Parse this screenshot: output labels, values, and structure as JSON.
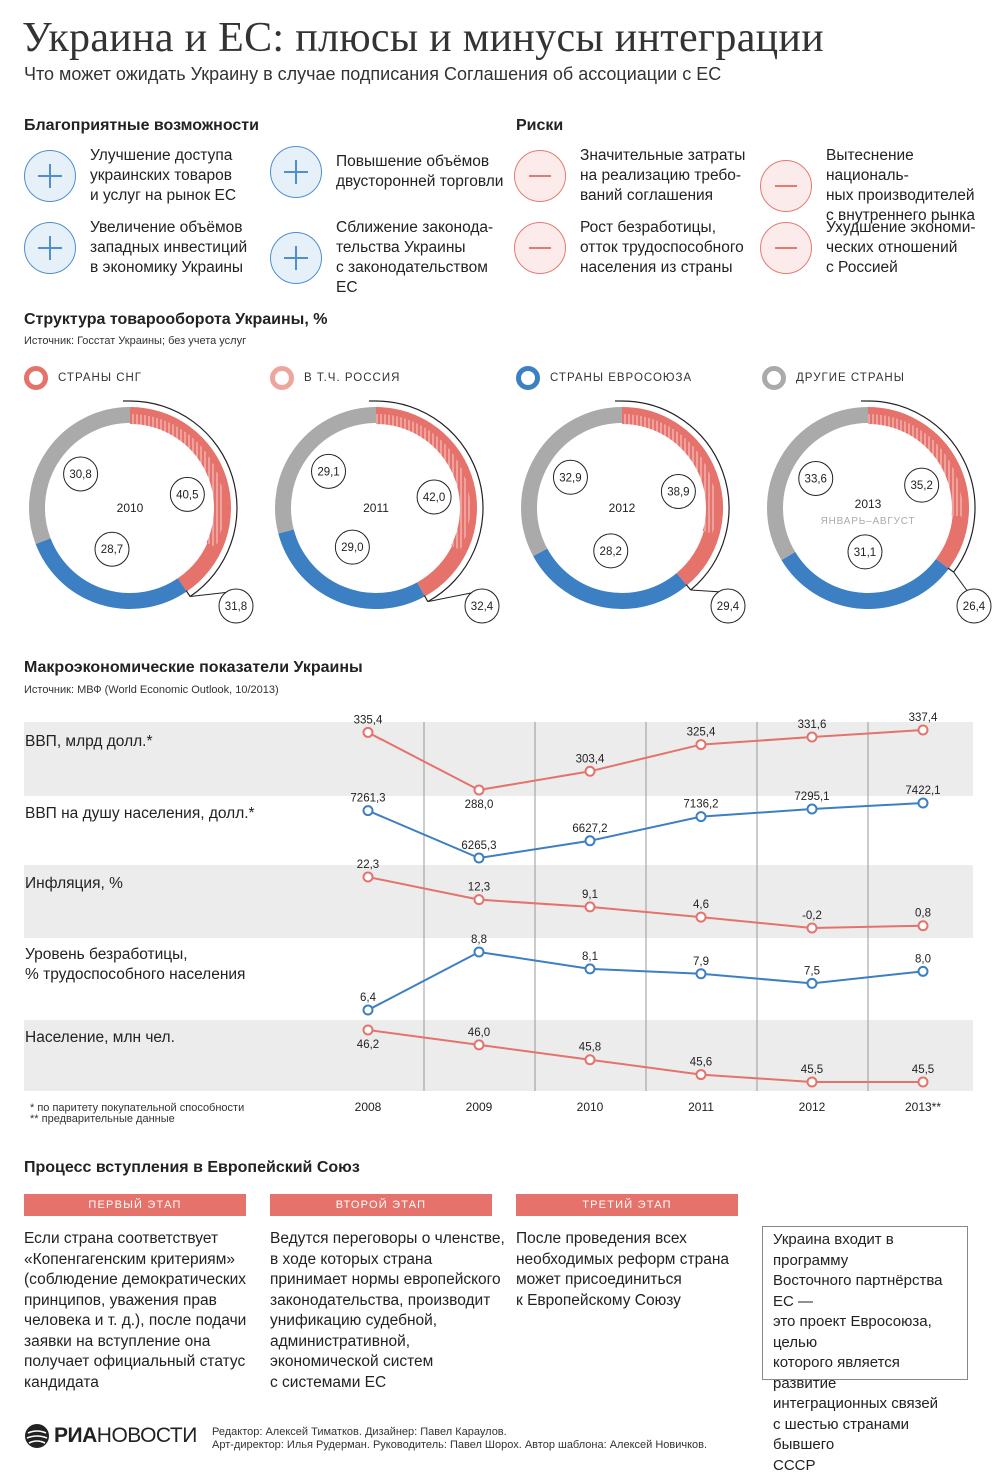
{
  "header": {
    "title": "Украина и ЕС: плюсы и минусы интеграции",
    "subtitle": "Что может ожидать Украину в случае подписания Соглашения об ассоциации с ЕС"
  },
  "opportunities": {
    "heading": "Благоприятные возможности",
    "items": [
      "Улучшение доступа\nукраинских товаров\nи услуг на рынок ЕС",
      "Повышение объёмов\nдвусторонней торговли",
      "Увеличение объёмов\nзападных инвестиций\nв экономику Украины",
      "Сближение законода-\nтельства Украины\nс законодательством ЕС"
    ]
  },
  "risks": {
    "heading": "Риски",
    "items": [
      "Значительные затраты\nна реализацию требо-\nваний соглашения",
      "Вытеснение националь-\nных производителей\nс внутреннего рынка",
      "Рост безработицы,\nотток трудоспособного\nнаселения из страны",
      "Ухудшение экономи-\nческих отношений\nс Россией"
    ]
  },
  "colors": {
    "red": "#e5726b",
    "blue": "#3c7fc3",
    "gray": "#aaaaaa",
    "hatch": "#f0a49e"
  },
  "trade": {
    "heading": "Структура товарооборота Украины, %",
    "source": "Источник: Госстат Украины; без учета услуг",
    "legend": [
      "СТРАНЫ СНГ",
      "В Т.Ч. РОССИЯ",
      "СТРАНЫ ЕВРОСОЮЗА",
      "ДРУГИЕ СТРАНЫ"
    ]
  },
  "macro": {
    "heading": "Макроэкономические показатели Украины",
    "source": "Источник: МВФ (World Economic Outlook, 10/2013)",
    "row_labels": [
      "ВВП, млрд долл.*",
      "ВВП на душу населения, долл.*",
      "Инфляция, %",
      "Уровень безработицы,\n% трудоспособного населения",
      "Население, млн чел."
    ],
    "footnote1": "* по паритету покупательной способности",
    "footnote2": "** предварительные данные"
  },
  "chart_data": [
    {
      "type": "pie",
      "title": "2010",
      "series": [
        {
          "name": "Страны СНГ",
          "value": 40.5
        },
        {
          "name": "Страны Евросоюза",
          "value": 28.7
        },
        {
          "name": "Другие страны",
          "value": 30.8
        }
      ],
      "russia_share": 31.8
    },
    {
      "type": "pie",
      "title": "2011",
      "series": [
        {
          "name": "Страны СНГ",
          "value": 42.0
        },
        {
          "name": "Страны Евросоюза",
          "value": 29.0
        },
        {
          "name": "Другие страны",
          "value": 29.1
        }
      ],
      "russia_share": 32.4
    },
    {
      "type": "pie",
      "title": "2012",
      "series": [
        {
          "name": "Страны СНГ",
          "value": 38.9
        },
        {
          "name": "Страны Евросоюза",
          "value": 28.2
        },
        {
          "name": "Другие страны",
          "value": 32.9
        }
      ],
      "russia_share": 29.4
    },
    {
      "type": "pie",
      "title": "2013",
      "note": "ЯНВАРЬ–АВГУСТ",
      "series": [
        {
          "name": "Страны СНГ",
          "value": 35.2
        },
        {
          "name": "Страны Евросоюза",
          "value": 31.1
        },
        {
          "name": "Другие страны",
          "value": 33.6
        }
      ],
      "russia_share": 26.4
    },
    {
      "type": "line",
      "x": [
        "2008",
        "2009",
        "2010",
        "2011",
        "2012",
        "2013**"
      ],
      "series": [
        {
          "name": "ВВП, млрд долл.",
          "values": [
            335.4,
            288.0,
            303.4,
            325.4,
            331.6,
            337.4
          ],
          "labels": [
            "335,4",
            "288,0",
            "303,4",
            "325,4",
            "331,6",
            "337,4"
          ],
          "color": "red"
        },
        {
          "name": "ВВП на душу населения, долл.",
          "values": [
            7261.3,
            6265.3,
            6627.2,
            7136.2,
            7295.1,
            7422.1
          ],
          "labels": [
            "7261,3",
            "6265,3",
            "6627,2",
            "7136,2",
            "7295,1",
            "7422,1"
          ],
          "color": "blue"
        },
        {
          "name": "Инфляция, %",
          "values": [
            22.3,
            12.3,
            9.1,
            4.6,
            -0.2,
            0.8
          ],
          "labels": [
            "22,3",
            "12,3",
            "9,1",
            "4,6",
            "-0,2",
            "0,8"
          ],
          "color": "red"
        },
        {
          "name": "Уровень безработицы, %",
          "values": [
            6.4,
            8.8,
            8.1,
            7.9,
            7.5,
            8.0
          ],
          "labels": [
            "6,4",
            "8,8",
            "8,1",
            "7,9",
            "7,5",
            "8,0"
          ],
          "color": "blue"
        },
        {
          "name": "Население, млн чел.",
          "values": [
            46.2,
            46.0,
            45.8,
            45.6,
            45.5,
            45.5
          ],
          "labels": [
            "46,2",
            "46,0",
            "45,8",
            "45,6",
            "45,5",
            "45,5"
          ],
          "color": "red"
        }
      ]
    }
  ],
  "eu_process": {
    "heading": "Процесс вступления в Европейский Союз",
    "stages": [
      {
        "label": "ПЕРВЫЙ ЭТАП",
        "text": "Если страна соответствует\n«Копенгагенским критериям»\n(соблюдение демократических\nпринципов, уважения прав\nчеловека и т. д.), после подачи\nзаявки на вступление она\nполучает официальный статус\nкандидата"
      },
      {
        "label": "ВТОРОЙ ЭТАП",
        "text": "Ведутся переговоры о членстве,\nв ходе которых страна\nпринимает нормы европейского\nзаконодательства, производит\nунификацию судебной,\nадминистративной,\nэкономической систем\nс системами ЕС"
      },
      {
        "label": "ТРЕТИЙ ЭТАП",
        "text": "После проведения всех\nнеобходимых реформ страна\nможет присоединиться\nк Европейскому Союзу"
      }
    ],
    "note": "Украина входит в программу\nВосточного партнёрства ЕС —\nэто проект Евросоюза, целью\nкоторого является развитие\nинтеграционных связей\nс шестью странами бывшего\nСССР"
  },
  "footer": {
    "logo_ria": "РИА",
    "logo_novosti": "НОВОСТИ",
    "credits": "Редактор: Алексей Тиматков. Дизайнер: Павел Караулов.\nАрт-директор: Илья Рудерман. Руководитель: Павел Шорох. Автор шаблона: Алексей Новичков."
  }
}
